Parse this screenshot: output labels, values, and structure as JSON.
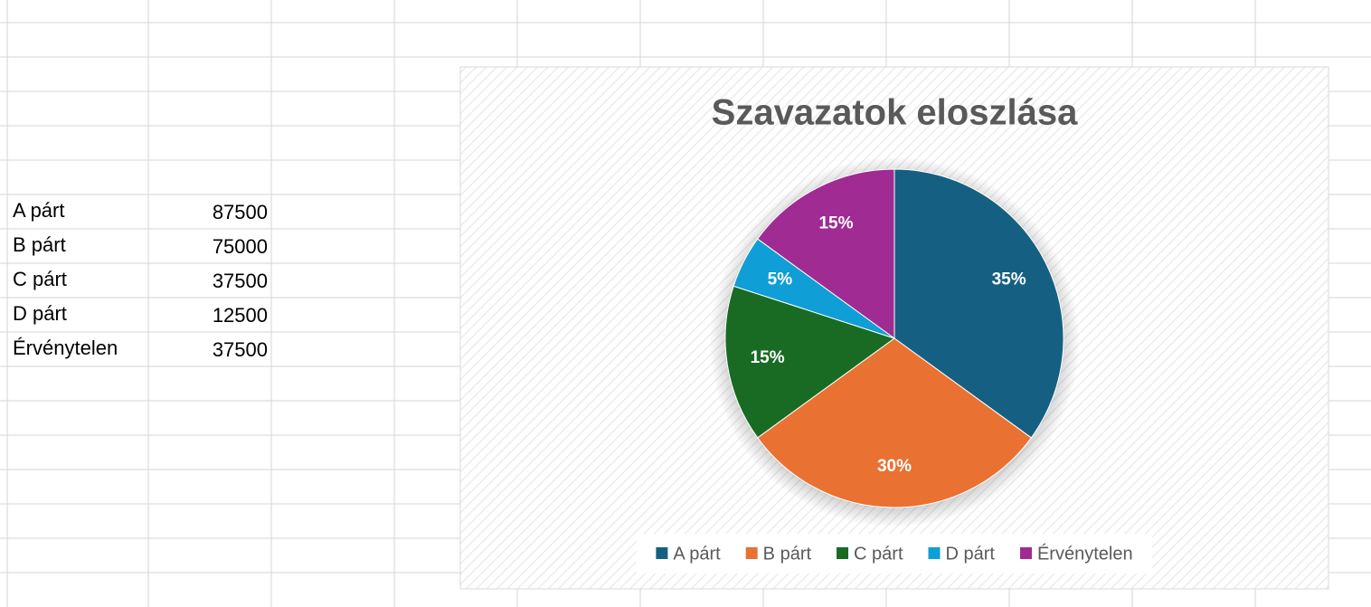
{
  "table": {
    "rows": [
      [
        "A párt",
        87500
      ],
      [
        "B párt",
        75000
      ],
      [
        "C párt",
        37500
      ],
      [
        "D párt",
        12500
      ],
      [
        "Érvénytelen",
        37500
      ]
    ]
  },
  "chart_data": {
    "type": "pie",
    "title": "Szavazatok eloszlása",
    "categories": [
      "A párt",
      "B párt",
      "C párt",
      "D párt",
      "Érvénytelen"
    ],
    "values": [
      35,
      30,
      15,
      5,
      15
    ],
    "value_labels": [
      "35%",
      "30%",
      "15%",
      "5%",
      "15%"
    ],
    "colors": [
      "#156082",
      "#e97132",
      "#196b24",
      "#0f9ed5",
      "#a02b93"
    ],
    "legend": "bottom"
  }
}
